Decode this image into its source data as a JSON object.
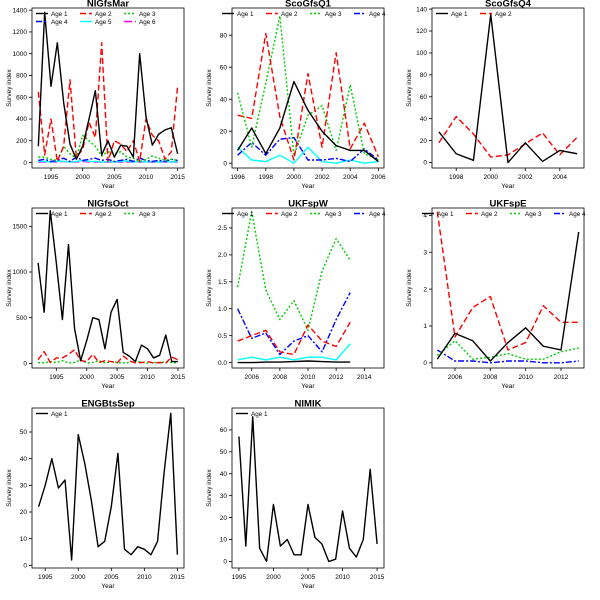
{
  "figure": {
    "background": "#ffffff"
  },
  "series_styles": {
    "Age 1": {
      "color": "#000000",
      "dash": ""
    },
    "Age 2": {
      "color": "#ff0000",
      "dash": "6,3"
    },
    "Age 3": {
      "color": "#00cd00",
      "dash": "2,2"
    },
    "Age 4": {
      "color": "#0000ff",
      "dash": "6,2,2,2"
    },
    "Age 5": {
      "color": "#00ffff",
      "dash": ""
    },
    "Age 6": {
      "color": "#ff00ff",
      "dash": "8,3"
    }
  },
  "chart_data": [
    {
      "type": "line",
      "title": "NIGfsMar",
      "xlabel": "Year",
      "ylabel": "Survey index",
      "xlim": [
        1992,
        2016
      ],
      "ylim": [
        -50,
        1420
      ],
      "xticks": [
        1995,
        2000,
        2005,
        2010,
        2015
      ],
      "yticks": [
        0,
        200,
        400,
        600,
        800,
        1000,
        1200,
        1400
      ],
      "legend": "top-left",
      "legend_cols": 3,
      "legend_order": [
        "Age 1",
        "Age 2",
        "Age 3",
        "Age 4",
        "Age 5",
        "Age 6"
      ],
      "x": [
        1993,
        1994,
        1995,
        1996,
        1997,
        1998,
        1999,
        2000,
        2001,
        2002,
        2003,
        2004,
        2005,
        2006,
        2007,
        2008,
        2009,
        2010,
        2011,
        2012,
        2013,
        2014,
        2015
      ],
      "series": [
        {
          "name": "Age 1",
          "values": [
            150,
            1380,
            700,
            1100,
            550,
            170,
            30,
            150,
            400,
            660,
            70,
            200,
            50,
            160,
            150,
            50,
            1000,
            420,
            160,
            260,
            300,
            320,
            80
          ]
        },
        {
          "name": "Age 2",
          "values": [
            650,
            70,
            400,
            10,
            150,
            760,
            50,
            120,
            370,
            230,
            1100,
            10,
            200,
            170,
            100,
            200,
            10,
            400,
            250,
            200,
            30,
            100,
            710
          ]
        },
        {
          "name": "Age 3",
          "values": [
            50,
            50,
            30,
            20,
            150,
            80,
            40,
            250,
            200,
            150,
            60,
            100,
            80,
            100,
            50,
            40,
            10,
            30,
            60,
            40,
            20,
            30,
            20
          ]
        },
        {
          "name": "Age 4",
          "values": [
            20,
            30,
            10,
            20,
            40,
            10,
            50,
            20,
            30,
            40,
            20,
            30,
            10,
            20,
            30,
            10,
            40,
            20,
            10,
            20,
            10,
            30,
            20
          ]
        },
        {
          "name": "Age 5",
          "values": [
            10,
            10,
            5,
            15,
            10,
            5,
            10,
            20,
            10,
            10,
            5,
            10,
            5,
            10,
            15,
            5,
            10,
            5,
            10,
            5,
            10,
            5,
            10
          ]
        },
        {
          "name": "Age 6",
          "values": [
            5,
            5,
            5,
            5,
            10,
            5,
            5,
            10,
            5,
            5,
            5,
            5,
            5,
            5,
            5,
            5,
            5,
            5,
            5,
            5,
            5,
            5,
            5
          ]
        }
      ]
    },
    {
      "type": "line",
      "title": "ScoGfsQ1",
      "xlabel": "Year",
      "ylabel": "Survey index",
      "xlim": [
        1995.6,
        2006.4
      ],
      "ylim": [
        -3,
        97
      ],
      "xticks": [
        1996,
        1998,
        2000,
        2002,
        2004,
        2006
      ],
      "yticks": [
        0,
        20,
        40,
        60,
        80
      ],
      "legend": "top",
      "legend_cols": 4,
      "legend_order": [
        "Age 1",
        "Age 2",
        "Age 3",
        "Age 4"
      ],
      "x": [
        1996,
        1997,
        1998,
        1999,
        2000,
        2001,
        2002,
        2003,
        2004,
        2005,
        2006
      ],
      "series": [
        {
          "name": "Age 1",
          "values": [
            8,
            22,
            6,
            22,
            51,
            33,
            20,
            11,
            8,
            8,
            1
          ]
        },
        {
          "name": "Age 2",
          "values": [
            30,
            28,
            81,
            29,
            2,
            56,
            10,
            69,
            9,
            25,
            4
          ]
        },
        {
          "name": "Age 3",
          "values": [
            44,
            10,
            50,
            92,
            5,
            30,
            36,
            8,
            49,
            6,
            2
          ]
        },
        {
          "name": "Age 4",
          "values": [
            5,
            13,
            5,
            15,
            16,
            2,
            2,
            3,
            1,
            9,
            2
          ]
        },
        {
          "name": "Age 5",
          "values": [
            10,
            2,
            1,
            5,
            0,
            10,
            1,
            0,
            2,
            0,
            1
          ]
        }
      ]
    },
    {
      "type": "line",
      "title": "ScoGfsQ4",
      "xlabel": "Year",
      "ylabel": "Survey index",
      "xlim": [
        1996.6,
        2005.4
      ],
      "ylim": [
        -5,
        141
      ],
      "xticks": [
        1998,
        2000,
        2002,
        2004
      ],
      "yticks": [
        0,
        20,
        40,
        60,
        80,
        100,
        120,
        140
      ],
      "legend": "top-left",
      "legend_cols": 2,
      "legend_order": [
        "Age 1",
        "Age 2"
      ],
      "x": [
        1997,
        1998,
        1999,
        2000,
        2001,
        2002,
        2003,
        2004,
        2005
      ],
      "series": [
        {
          "name": "Age 1",
          "values": [
            28,
            8,
            2,
            135,
            0,
            18,
            1,
            11,
            8
          ]
        },
        {
          "name": "Age 2",
          "values": [
            18,
            42,
            26,
            5,
            7,
            17,
            27,
            7,
            23
          ]
        }
      ]
    },
    {
      "type": "line",
      "title": "NIGfsOct",
      "xlabel": "Year",
      "ylabel": "Survey index",
      "xlim": [
        1991,
        2016
      ],
      "ylim": [
        -50,
        1700
      ],
      "xticks": [
        1995,
        2000,
        2005,
        2010,
        2015
      ],
      "yticks": [
        0,
        500,
        1000,
        1500
      ],
      "legend": "top-left",
      "legend_cols": 3,
      "legend_order": [
        "Age 1",
        "Age 2",
        "Age 3"
      ],
      "x": [
        1992,
        1993,
        1994,
        1995,
        1996,
        1997,
        1998,
        1999,
        2000,
        2001,
        2002,
        2003,
        2004,
        2005,
        2006,
        2007,
        2008,
        2009,
        2010,
        2011,
        2012,
        2013,
        2014,
        2015
      ],
      "series": [
        {
          "name": "Age 1",
          "values": [
            1100,
            560,
            1670,
            1100,
            480,
            1300,
            380,
            30,
            250,
            500,
            480,
            160,
            560,
            700,
            120,
            80,
            20,
            200,
            160,
            60,
            90,
            310,
            20,
            20
          ]
        },
        {
          "name": "Age 2",
          "values": [
            40,
            130,
            10,
            60,
            60,
            100,
            150,
            30,
            20,
            100,
            10,
            30,
            20,
            5,
            80,
            30,
            5,
            10,
            20,
            5,
            10,
            5,
            70,
            40
          ]
        },
        {
          "name": "Age 3",
          "values": [
            10,
            5,
            20,
            10,
            30,
            5,
            10,
            40,
            5,
            10,
            30,
            5,
            20,
            10,
            5,
            10,
            30,
            10,
            5,
            10,
            5,
            20,
            10,
            5
          ]
        }
      ]
    },
    {
      "type": "line",
      "title": "UKFspW",
      "xlabel": "Year",
      "ylabel": "Survey index",
      "xlim": [
        2004.6,
        2015.4
      ],
      "ylim": [
        -0.1,
        2.87
      ],
      "xticks": [
        2006,
        2008,
        2010,
        2012,
        2014
      ],
      "yticks": [
        0.0,
        0.5,
        1.0,
        1.5,
        2.0,
        2.5
      ],
      "legend": "top",
      "legend_cols": 4,
      "legend_order": [
        "Age 1",
        "Age 2",
        "Age 3",
        "Age 4"
      ],
      "x": [
        2005,
        2006,
        2007,
        2008,
        2009,
        2010,
        2011,
        2012,
        2013
      ],
      "series": [
        {
          "name": "Age 1",
          "values": [
            0.0,
            0.0,
            0.01,
            0.01,
            0.02,
            0.03,
            0.02,
            0.01,
            0.01
          ]
        },
        {
          "name": "Age 2",
          "values": [
            0.4,
            0.5,
            0.6,
            0.2,
            0.15,
            0.7,
            0.4,
            0.3,
            0.75
          ]
        },
        {
          "name": "Age 3",
          "values": [
            1.4,
            2.8,
            1.35,
            0.8,
            1.15,
            0.6,
            1.7,
            2.3,
            1.9
          ]
        },
        {
          "name": "Age 4",
          "values": [
            1.0,
            0.45,
            0.55,
            0.15,
            0.4,
            0.5,
            0.2,
            0.8,
            1.3
          ]
        },
        {
          "name": "Age 5",
          "values": [
            0.05,
            0.1,
            0.05,
            0.1,
            0.05,
            0.1,
            0.1,
            0.05,
            0.35
          ]
        }
      ]
    },
    {
      "type": "line",
      "title": "UKFspE",
      "xlabel": "Year",
      "ylabel": "Survey index",
      "xlim": [
        2004.7,
        2013.3
      ],
      "ylim": [
        -0.14,
        4.2
      ],
      "xticks": [
        2006,
        2008,
        2010,
        2012
      ],
      "yticks": [
        0,
        1,
        2,
        3,
        4
      ],
      "legend": "top",
      "legend_cols": 4,
      "legend_order": [
        "Age 1",
        "Age 2",
        "Age 3",
        "Age 4"
      ],
      "x": [
        2005,
        2006,
        2007,
        2008,
        2009,
        2010,
        2011,
        2012,
        2013
      ],
      "series": [
        {
          "name": "Age 1",
          "values": [
            0.1,
            0.8,
            0.6,
            0.05,
            0.55,
            0.95,
            0.45,
            0.35,
            3.55
          ]
        },
        {
          "name": "Age 2",
          "values": [
            4.1,
            0.7,
            1.5,
            1.8,
            0.35,
            0.55,
            1.55,
            1.1,
            1.1
          ]
        },
        {
          "name": "Age 3",
          "values": [
            0.2,
            0.6,
            0.1,
            0.15,
            0.25,
            0.1,
            0.1,
            0.3,
            0.4
          ]
        },
        {
          "name": "Age 4",
          "values": [
            0.35,
            0.05,
            0.05,
            0.0,
            0.05,
            0.05,
            0.0,
            0.0,
            0.05
          ]
        }
      ]
    },
    {
      "type": "line",
      "title": "ENGBtsSep",
      "xlabel": "Year",
      "ylabel": "Survey index",
      "xlim": [
        1993,
        2016
      ],
      "ylim": [
        -1,
        59
      ],
      "xticks": [
        1995,
        2000,
        2005,
        2010,
        2015
      ],
      "yticks": [
        0,
        10,
        20,
        30,
        40,
        50
      ],
      "legend": "top-left",
      "legend_cols": 1,
      "legend_order": [
        "Age 1"
      ],
      "x": [
        1994,
        1995,
        1996,
        1997,
        1998,
        1999,
        2000,
        2001,
        2002,
        2003,
        2004,
        2005,
        2006,
        2007,
        2008,
        2009,
        2010,
        2011,
        2012,
        2013,
        2014,
        2015
      ],
      "series": [
        {
          "name": "Age 1",
          "values": [
            22,
            30,
            40,
            29,
            32,
            2,
            49,
            38,
            24,
            7,
            9,
            22,
            42,
            6,
            4,
            7,
            6,
            4,
            9,
            35,
            57,
            4
          ]
        }
      ]
    },
    {
      "type": "line",
      "title": "NIMIK",
      "xlabel": "Year",
      "ylabel": "Survey index",
      "xlim": [
        1994,
        2016
      ],
      "ylim": [
        -3,
        70
      ],
      "xticks": [
        1995,
        2000,
        2005,
        2010,
        2015
      ],
      "yticks": [
        0,
        10,
        20,
        30,
        40,
        50,
        60
      ],
      "legend": "top-left",
      "legend_cols": 1,
      "legend_order": [
        "Age 1"
      ],
      "x": [
        1995,
        1996,
        1997,
        1998,
        1999,
        2000,
        2001,
        2002,
        2003,
        2004,
        2005,
        2006,
        2007,
        2008,
        2009,
        2010,
        2011,
        2012,
        2013,
        2014,
        2015
      ],
      "series": [
        {
          "name": "Age 1",
          "values": [
            57,
            7,
            66,
            6,
            0,
            26,
            7,
            10,
            3,
            3,
            26,
            11,
            8,
            0,
            1,
            23,
            6,
            2,
            10,
            42,
            8
          ]
        }
      ]
    }
  ]
}
